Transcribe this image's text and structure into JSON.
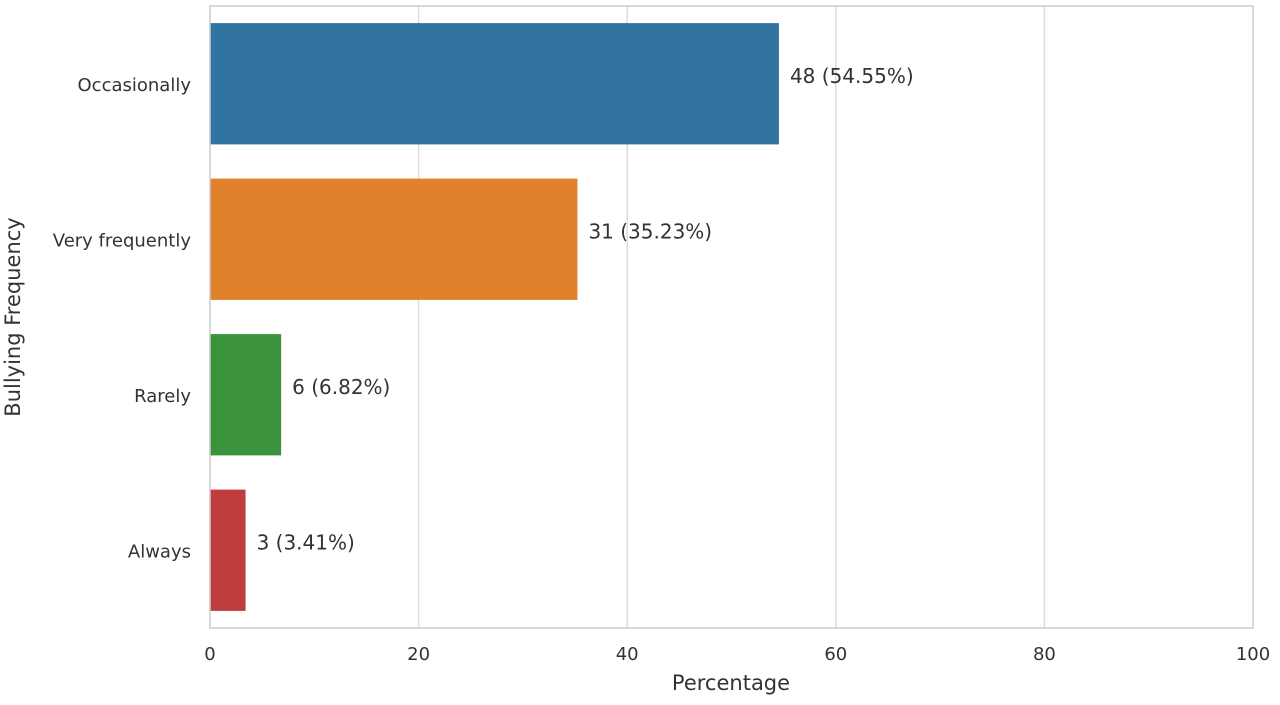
{
  "chart_data": {
    "type": "bar",
    "orientation": "horizontal",
    "categories": [
      "Occasionally",
      "Very frequently",
      "Rarely",
      "Always"
    ],
    "values": [
      54.55,
      35.23,
      6.82,
      3.41
    ],
    "counts": [
      48,
      31,
      6,
      3
    ],
    "data_labels": [
      "48 (54.55%)",
      "31 (35.23%)",
      "6 (6.82%)",
      "3 (3.41%)"
    ],
    "colors": [
      "#3274a1",
      "#e1812c",
      "#3a923a",
      "#c03d3e"
    ],
    "xlabel": "Percentage",
    "ylabel": "Bullying Frequency",
    "xlim": [
      0,
      100
    ],
    "xticks": [
      0,
      20,
      40,
      60,
      80,
      100
    ],
    "xtick_labels": [
      "0",
      "20",
      "40",
      "60",
      "80",
      "100"
    ],
    "grid": "vertical",
    "legend": "none"
  }
}
